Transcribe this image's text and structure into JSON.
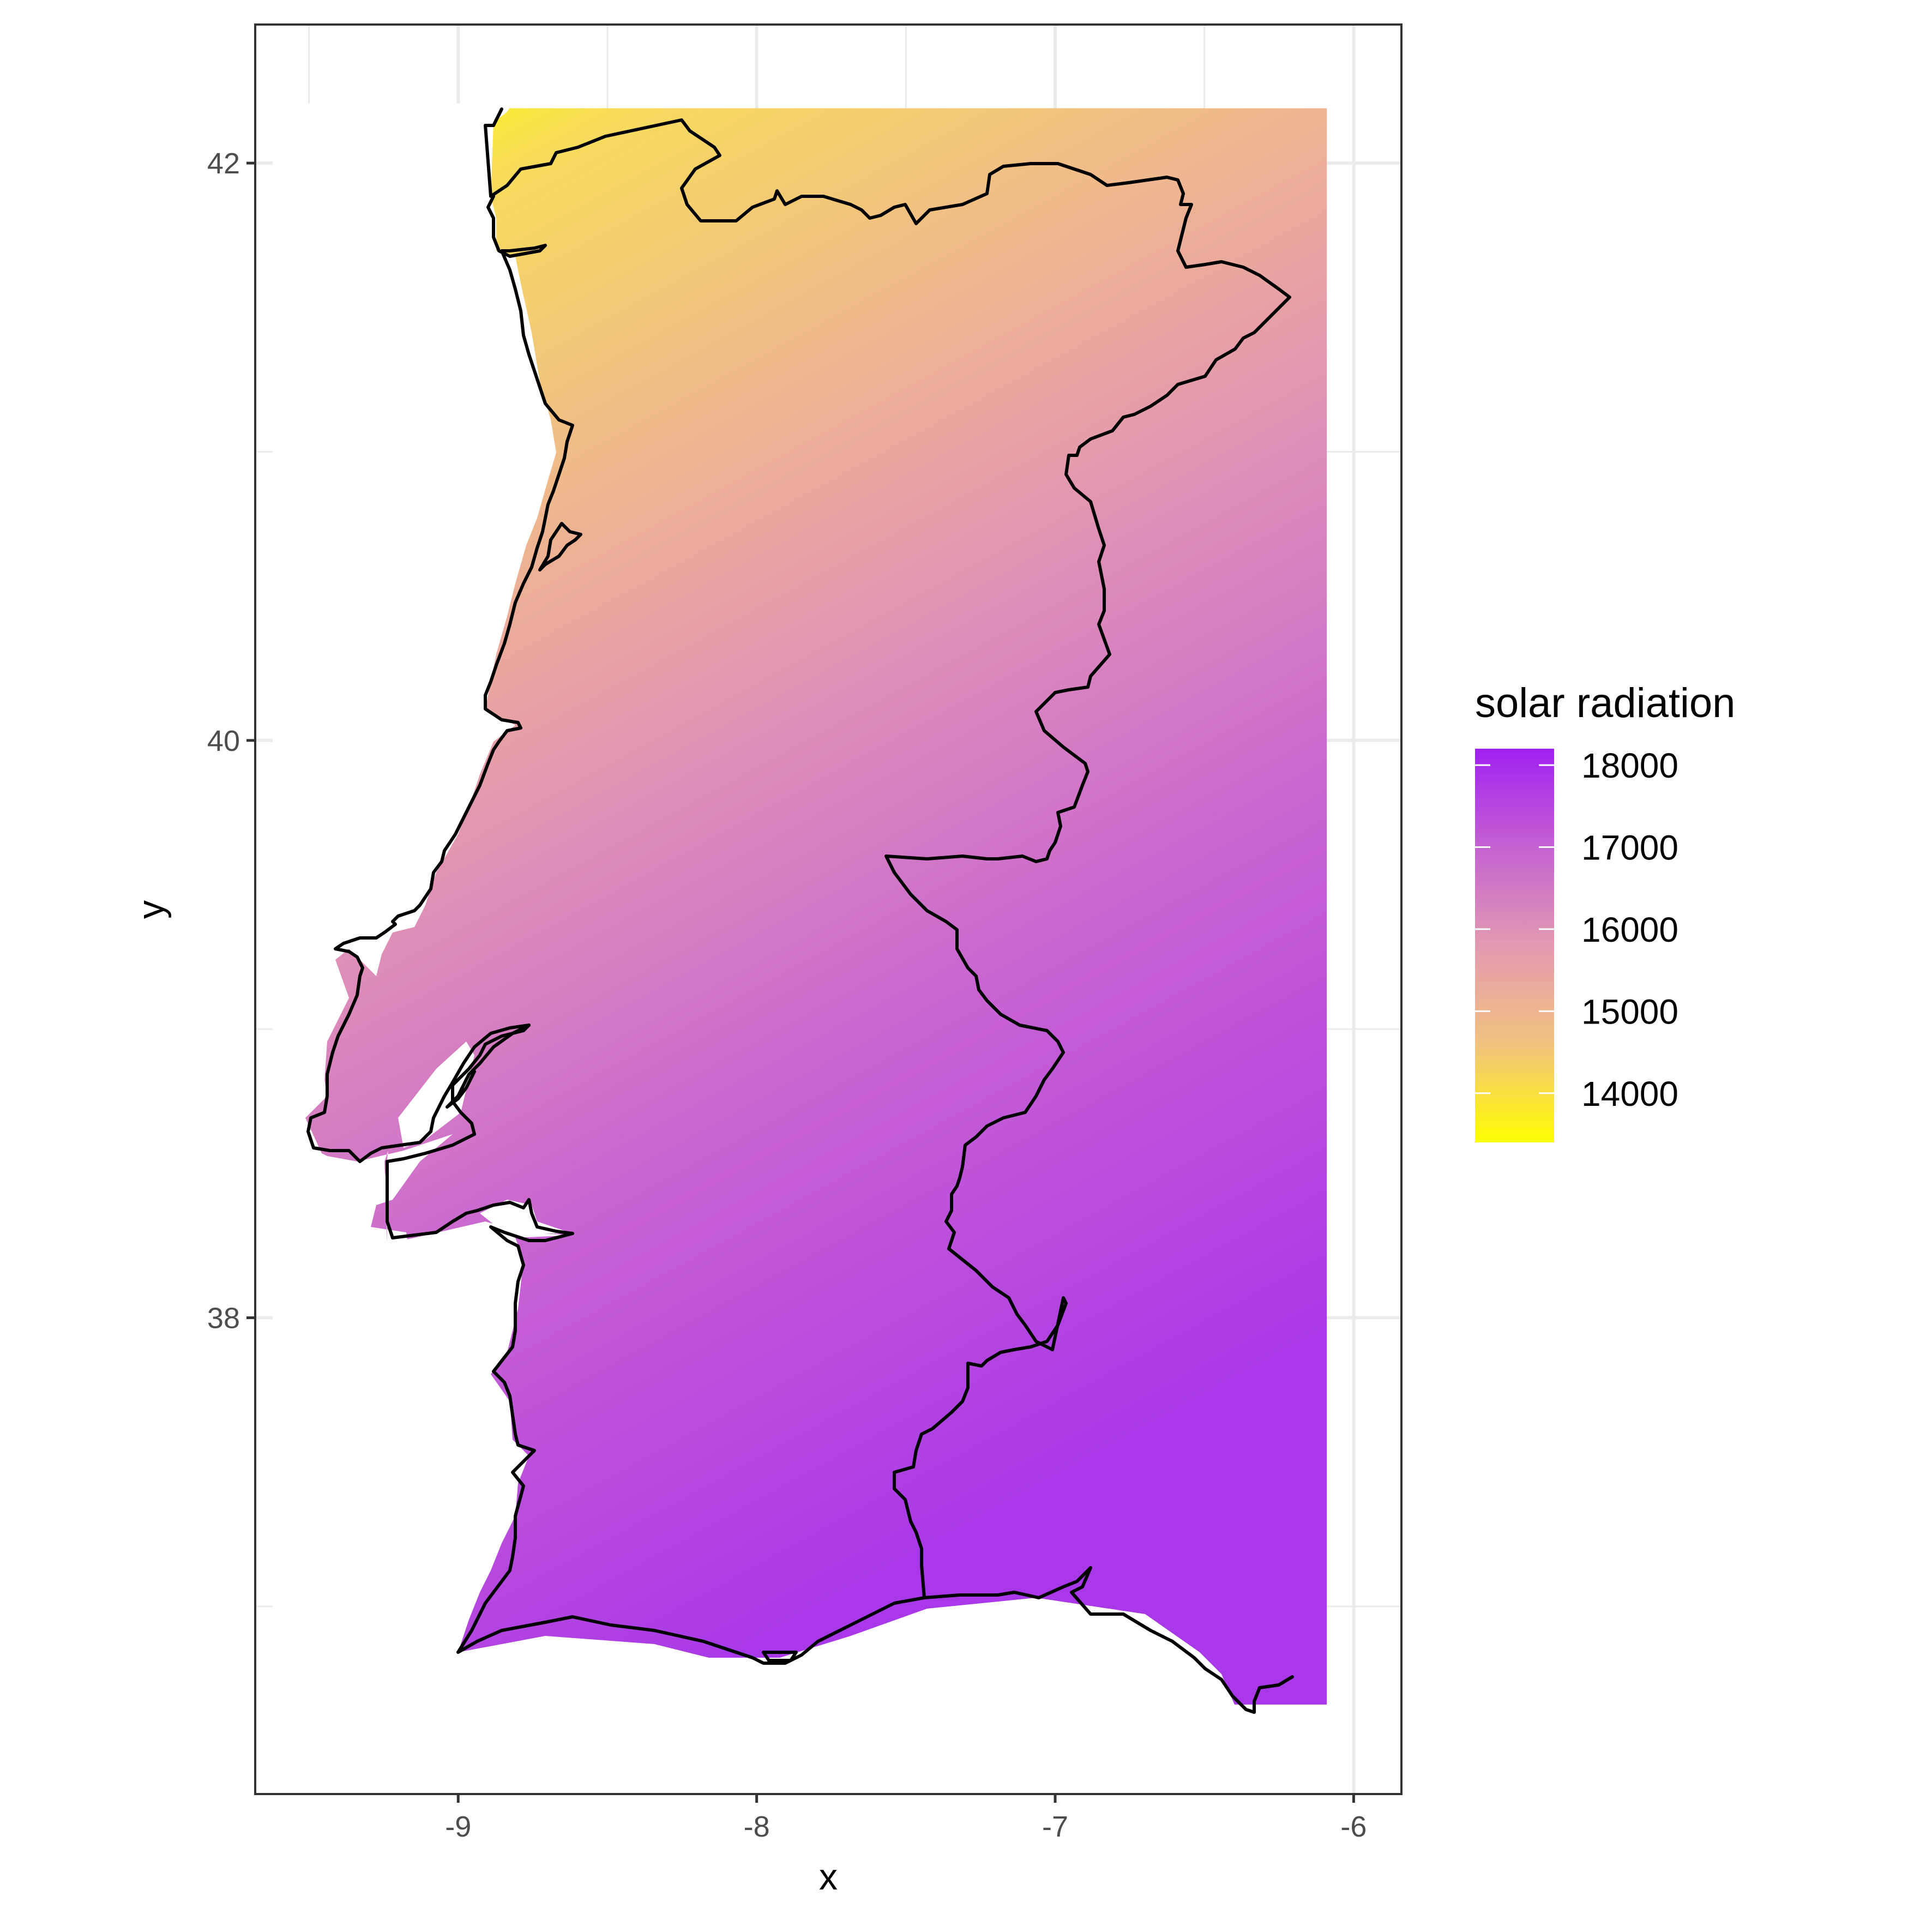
{
  "chart_data": {
    "type": "heatmap",
    "title": "",
    "xlabel": "x",
    "ylabel": "y",
    "xlim": [
      -9.68,
      -5.84
    ],
    "ylim": [
      36.35,
      42.48
    ],
    "x_ticks": [
      -9,
      -8,
      -7,
      -6
    ],
    "x_tick_labels": [
      "-9",
      "-8",
      "-7",
      "-6"
    ],
    "y_ticks": [
      38,
      40,
      42
    ],
    "y_tick_labels": [
      "38",
      "40",
      "42"
    ],
    "x_minor": [
      -9.5,
      -8.5,
      -7.5,
      -6.5
    ],
    "y_minor": [
      37,
      39,
      41
    ],
    "grid": true,
    "raster_extent": {
      "xmin": -9.52,
      "xmax": -6.09,
      "ymin": 36.66,
      "ymax": 42.19
    },
    "legend": {
      "title": "solar radiation",
      "placement": "right",
      "min": 13400,
      "max": 18200,
      "breaks": [
        18000,
        17000,
        16000,
        15000,
        14000
      ],
      "labels": [
        "18000",
        "17000",
        "16000",
        "15000",
        "14000"
      ],
      "colors": [
        "#ffff00",
        "#f2c27f",
        "#e29ab0",
        "#c562d2",
        "#a020f0"
      ]
    },
    "value_field_samples": [
      {
        "x": -8.2,
        "y": 42.1,
        "value": 13500
      },
      {
        "x": -6.2,
        "y": 42.1,
        "value": 15000
      },
      {
        "x": -8.8,
        "y": 40.1,
        "value": 15900
      },
      {
        "x": -6.2,
        "y": 40.1,
        "value": 16700
      },
      {
        "x": -8.5,
        "y": 38.3,
        "value": 16900
      },
      {
        "x": -6.3,
        "y": 37.0,
        "value": 17800
      },
      {
        "x": -8.2,
        "y": 37.0,
        "value": 17800
      }
    ],
    "overlay": "Portugal coastline and border outline"
  }
}
